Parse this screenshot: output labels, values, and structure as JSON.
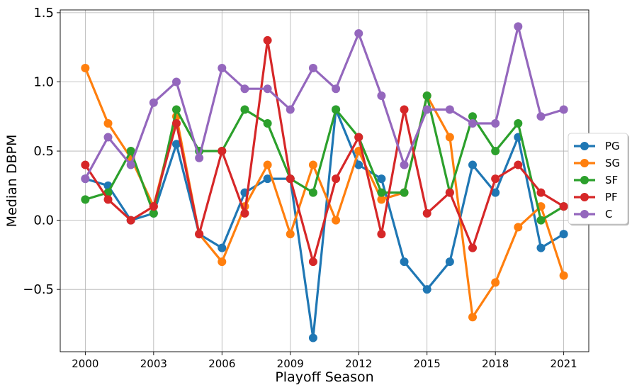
{
  "chart_data": {
    "type": "line",
    "title": "",
    "xlabel": "Playoff Season",
    "ylabel": "Median DBPM",
    "x": [
      2000,
      2001,
      2002,
      2003,
      2004,
      2005,
      2006,
      2007,
      2008,
      2009,
      2010,
      2011,
      2012,
      2013,
      2014,
      2015,
      2016,
      2017,
      2018,
      2019,
      2020,
      2021
    ],
    "x_ticks": [
      2000,
      2003,
      2006,
      2009,
      2012,
      2015,
      2018,
      2021
    ],
    "x_tick_labels": [
      "2000",
      "2003",
      "2006",
      "2009",
      "2012",
      "2015",
      "2018",
      "2021"
    ],
    "y_ticks": [
      -0.5,
      0.0,
      0.5,
      1.0,
      1.5
    ],
    "y_tick_labels": [
      "−0.5",
      "0.0",
      "0.5",
      "1.0",
      "1.5"
    ],
    "xlim": [
      1998.9,
      2022.1
    ],
    "ylim": [
      -0.95,
      1.52
    ],
    "grid": true,
    "legend_position": "center-right",
    "series": [
      {
        "name": "PG",
        "color": "#1f77b4",
        "values": [
          0.3,
          0.25,
          0.0,
          0.05,
          0.55,
          -0.1,
          -0.2,
          0.2,
          0.3,
          0.3,
          -0.85,
          0.8,
          0.4,
          0.3,
          -0.3,
          -0.5,
          -0.3,
          0.4,
          0.2,
          0.6,
          -0.2,
          -0.1
        ]
      },
      {
        "name": "SG",
        "color": "#ff7f0e",
        "values": [
          1.1,
          0.7,
          0.45,
          0.1,
          0.75,
          -0.1,
          -0.3,
          0.1,
          0.4,
          -0.1,
          0.4,
          0.0,
          0.5,
          0.15,
          0.2,
          0.9,
          0.6,
          -0.7,
          -0.45,
          -0.05,
          0.1,
          -0.4
        ]
      },
      {
        "name": "SF",
        "color": "#2ca02c",
        "values": [
          0.15,
          0.2,
          0.5,
          0.05,
          0.8,
          0.5,
          0.5,
          0.8,
          0.7,
          0.3,
          0.2,
          0.8,
          0.6,
          0.2,
          0.2,
          0.9,
          0.2,
          0.75,
          0.5,
          0.7,
          0.0,
          0.1
        ]
      },
      {
        "name": "PF",
        "color": "#d62728",
        "values": [
          0.4,
          0.15,
          0.0,
          0.1,
          0.7,
          -0.1,
          0.5,
          0.05,
          1.3,
          0.3,
          -0.3,
          0.3,
          0.6,
          -0.1,
          0.8,
          0.05,
          0.2,
          -0.2,
          0.3,
          0.4,
          0.2,
          0.1
        ]
      },
      {
        "name": "C",
        "color": "#9467bd",
        "values": [
          0.3,
          0.6,
          0.4,
          0.85,
          1.0,
          0.45,
          1.1,
          0.95,
          0.95,
          0.8,
          1.1,
          0.95,
          1.35,
          0.9,
          0.4,
          0.8,
          0.8,
          0.7,
          0.7,
          1.4,
          0.75,
          0.8
        ]
      }
    ]
  }
}
